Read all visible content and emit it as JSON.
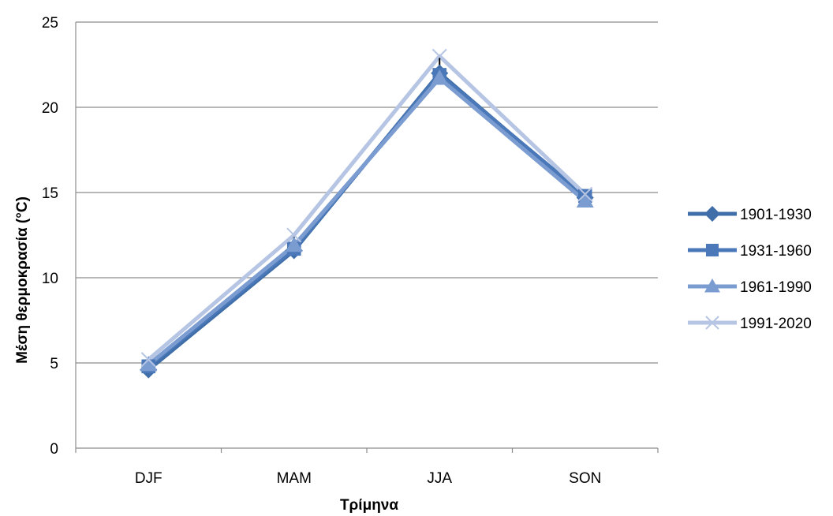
{
  "chart_data": {
    "type": "line",
    "categories": [
      "DJF",
      "MAM",
      "JJA",
      "SON"
    ],
    "xlabel": "Τρίμηνα",
    "ylabel": "Μέση θερμοκρασία (°C)",
    "ylim": [
      0,
      25
    ],
    "yticks": [
      0,
      5,
      10,
      15,
      20,
      25
    ],
    "grid": true,
    "legend": "right",
    "series": [
      {
        "name": "1901-1930",
        "values": [
          4.6,
          11.6,
          22.0,
          14.7
        ],
        "color": "#3f6ea8",
        "marker": "diamond"
      },
      {
        "name": "1931-1960",
        "values": [
          4.8,
          11.7,
          21.9,
          14.8
        ],
        "color": "#4a78b8",
        "marker": "square"
      },
      {
        "name": "1961-1990",
        "values": [
          4.9,
          11.9,
          21.7,
          14.5
        ],
        "color": "#7b9cd0",
        "marker": "triangle"
      },
      {
        "name": "1991-2020",
        "values": [
          5.2,
          12.5,
          23.0,
          14.9
        ],
        "color": "#b5c5e3",
        "marker": "x"
      }
    ],
    "error_bars": {
      "low": [
        4.4,
        11.5,
        21.5,
        14.4
      ],
      "high": [
        5.3,
        12.4,
        22.9,
        15.0
      ]
    }
  }
}
